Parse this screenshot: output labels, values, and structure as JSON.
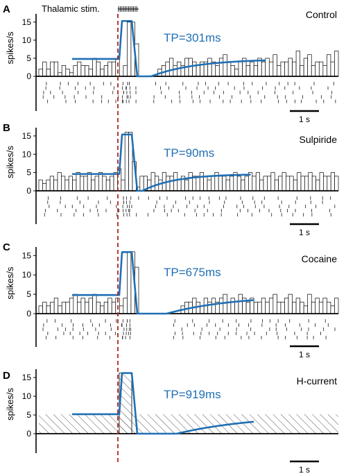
{
  "stimulus_label": "Thalamic stim.",
  "y_axis_label": "spikes/s",
  "scale_bar_label": "1 s",
  "colors": {
    "fit_line": "#1f6fb5",
    "stim_line": "#b22222",
    "bars": "#000000"
  },
  "chart_data": [
    {
      "type": "bar",
      "panel": "A",
      "condition": "Control",
      "tp_label": "TP=301ms",
      "ylabel": "spikes/s",
      "ylim": [
        0,
        15
      ],
      "yticks": [
        0,
        5,
        10,
        15
      ],
      "histogram": [
        2,
        4,
        2,
        4,
        4,
        1,
        3,
        2,
        1,
        3,
        4,
        3,
        3,
        2,
        5,
        4,
        2,
        3,
        4,
        4,
        5,
        0,
        3,
        15,
        15,
        9,
        0,
        0,
        0,
        0,
        0,
        2,
        3,
        4,
        5,
        3,
        4,
        3,
        5,
        5,
        4,
        3,
        4,
        4,
        5,
        4,
        3,
        5,
        6,
        4,
        3,
        2,
        4,
        5,
        3,
        4,
        3,
        5,
        4,
        5,
        4,
        6,
        3,
        4,
        4,
        5,
        4,
        7,
        3,
        5,
        6,
        3,
        4,
        4,
        3,
        6,
        4,
        7
      ],
      "fit": {
        "baseline": 4.8,
        "peak": 15.3,
        "tp_ms": 301
      },
      "raster": true,
      "hatched": false
    },
    {
      "type": "bar",
      "panel": "B",
      "condition": "Sulpiride",
      "tp_label": "TP=90ms",
      "ylabel": "spikes/s",
      "ylim": [
        0,
        15
      ],
      "yticks": [
        0,
        5,
        10,
        15
      ],
      "histogram": [
        3,
        2,
        3,
        4,
        3,
        5,
        4,
        3,
        4,
        3,
        5,
        4,
        4,
        5,
        3,
        4,
        5,
        4,
        3,
        4,
        5,
        6,
        3,
        16,
        16,
        8,
        1,
        4,
        4,
        3,
        5,
        4,
        3,
        5,
        4,
        4,
        5,
        3,
        4,
        3,
        5,
        4,
        4,
        5,
        4,
        3,
        4,
        5,
        4,
        4,
        3,
        4,
        5,
        4,
        3,
        4,
        5,
        4,
        5,
        3,
        4,
        4,
        5,
        3,
        4,
        5,
        4,
        4,
        3,
        5,
        4,
        4,
        5,
        4,
        3,
        5,
        4,
        4,
        5,
        4
      ],
      "fit": {
        "baseline": 4.6,
        "peak": 15.4,
        "tp_ms": 90
      },
      "raster": true,
      "hatched": false
    },
    {
      "type": "bar",
      "panel": "C",
      "condition": "Cocaine",
      "tp_label": "TP=675ms",
      "ylabel": "spikes/s",
      "ylim": [
        0,
        15
      ],
      "yticks": [
        0,
        5,
        10,
        15
      ],
      "histogram": [
        2,
        3,
        2,
        3,
        4,
        2,
        3,
        3,
        4,
        5,
        3,
        4,
        3,
        4,
        5,
        3,
        2,
        3,
        4,
        3,
        4,
        2,
        4,
        16,
        16,
        12,
        0,
        0,
        0,
        0,
        0,
        0,
        0,
        0,
        0,
        0,
        0,
        2,
        3,
        3,
        4,
        3,
        2,
        4,
        3,
        4,
        3,
        4,
        5,
        3,
        4,
        3,
        5,
        4,
        3,
        4,
        3,
        3,
        4,
        3,
        4,
        5,
        3,
        3,
        4,
        5,
        3,
        4,
        3,
        2,
        5,
        3,
        4,
        3,
        4,
        3,
        2,
        4
      ],
      "fit": {
        "baseline": 4.8,
        "peak": 15.9,
        "tp_ms": 675
      },
      "raster": true,
      "hatched": false
    },
    {
      "type": "area",
      "panel": "D",
      "condition": "H-current",
      "tp_label": "TP=919ms",
      "ylabel": "spikes/s",
      "ylim": [
        0,
        15
      ],
      "yticks": [
        0,
        5,
        10,
        15
      ],
      "histogram": [],
      "fit": {
        "baseline": 5.2,
        "peak": 16.2,
        "tp_ms": 919
      },
      "raster": false,
      "hatched": true
    }
  ]
}
